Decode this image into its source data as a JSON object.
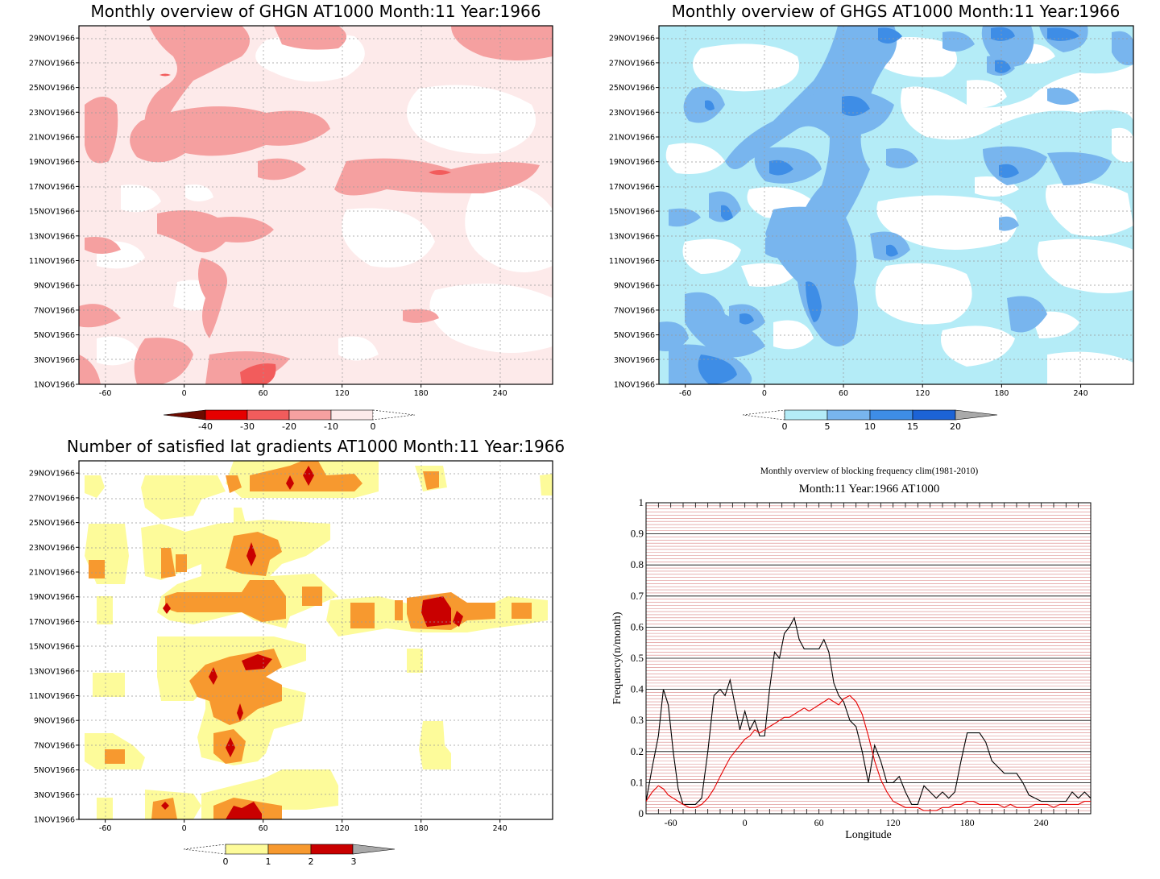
{
  "chart_data": [
    {
      "type": "heatmap",
      "title": "Monthly overview of GHGN AT1000 Month:11 Year:1966",
      "xlim": [
        -80,
        280
      ],
      "xticks": [
        "-60",
        "0",
        "60",
        "120",
        "180",
        "240"
      ],
      "xtick_values": [
        -60,
        0,
        60,
        120,
        180,
        240
      ],
      "yticks": [
        "1NOV1966",
        "3NOV1966",
        "5NOV1966",
        "7NOV1966",
        "9NOV1966",
        "11NOV1966",
        "13NOV1966",
        "15NOV1966",
        "17NOV1966",
        "19NOV1966",
        "21NOV1966",
        "23NOV1966",
        "25NOV1966",
        "27NOV1966",
        "29NOV1966"
      ],
      "grid": true,
      "colorbar": {
        "labels": [
          "-40",
          "-30",
          "-20",
          "-10",
          "0"
        ],
        "colors": [
          "#6b0a00",
          "#e60000",
          "#f25c5c",
          "#f5a0a0",
          "#fdeaea"
        ],
        "open_end_color": "#ffffff"
      },
      "field_levels": [
        "0 to -10 (background)",
        "-10 to -20",
        "-20 to -30",
        "-30 to -40"
      ]
    },
    {
      "type": "heatmap",
      "title": "Monthly overview of GHGS AT1000 Month:11 Year:1966",
      "xlim": [
        -80,
        280
      ],
      "xticks": [
        "-60",
        "0",
        "60",
        "120",
        "180",
        "240"
      ],
      "xtick_values": [
        -60,
        0,
        60,
        120,
        180,
        240
      ],
      "yticks": [
        "1NOV1966",
        "3NOV1966",
        "5NOV1966",
        "7NOV1966",
        "9NOV1966",
        "11NOV1966",
        "13NOV1966",
        "15NOV1966",
        "17NOV1966",
        "19NOV1966",
        "21NOV1966",
        "23NOV1966",
        "25NOV1966",
        "27NOV1966",
        "29NOV1966"
      ],
      "grid": true,
      "colorbar": {
        "labels": [
          "0",
          "5",
          "10",
          "15",
          "20"
        ],
        "colors": [
          "#b4ecf7",
          "#78b5ee",
          "#3e8de6",
          "#1c63d6",
          "#a9a9a9"
        ],
        "open_end_color": "#ffffff"
      }
    },
    {
      "type": "heatmap",
      "title": "Number of satisfied lat gradients AT1000 Month:11 Year:1966",
      "xlim": [
        -80,
        280
      ],
      "xticks": [
        "-60",
        "0",
        "60",
        "120",
        "180",
        "240"
      ],
      "xtick_values": [
        -60,
        0,
        60,
        120,
        180,
        240
      ],
      "yticks": [
        "1NOV1966",
        "3NOV1966",
        "5NOV1966",
        "7NOV1966",
        "9NOV1966",
        "11NOV1966",
        "13NOV1966",
        "15NOV1966",
        "17NOV1966",
        "19NOV1966",
        "21NOV1966",
        "23NOV1966",
        "25NOV1966",
        "27NOV1966",
        "29NOV1966"
      ],
      "grid": true,
      "colorbar": {
        "labels": [
          "0",
          "1",
          "2",
          "3"
        ],
        "colors": [
          "#fdfb9a",
          "#f7992f",
          "#c90000",
          "#a9a9a9"
        ],
        "open_end_color": "#ffffff"
      }
    },
    {
      "type": "line",
      "title": "Monthly overview of blocking frequency clim(1981-2010)",
      "subtitle": "Month:11 Year:1966  AT1000",
      "xlabel": "Longitude",
      "ylabel": "Frequency(n/month)",
      "xlim": [
        -80,
        280
      ],
      "ylim": [
        0,
        1
      ],
      "xticks": [
        "-60",
        "0",
        "60",
        "120",
        "180",
        "240"
      ],
      "xtick_values": [
        -60,
        0,
        60,
        120,
        180,
        240
      ],
      "yticks": [
        "0",
        "0.1",
        "0.2",
        "0.3",
        "0.4",
        "0.5",
        "0.6",
        "0.7",
        "0.8",
        "0.9",
        "1"
      ],
      "grid": true,
      "x": [
        -80,
        -75,
        -70,
        -66,
        -62,
        -58,
        -54,
        -50,
        -45,
        -40,
        -35,
        -30,
        -25,
        -20,
        -16,
        -12,
        -8,
        -4,
        0,
        4,
        8,
        12,
        16,
        20,
        24,
        28,
        32,
        36,
        40,
        44,
        48,
        52,
        56,
        60,
        64,
        68,
        72,
        76,
        80,
        85,
        90,
        95,
        100,
        105,
        110,
        115,
        120,
        125,
        130,
        135,
        140,
        145,
        150,
        155,
        160,
        165,
        170,
        175,
        180,
        185,
        190,
        195,
        200,
        205,
        210,
        215,
        220,
        225,
        230,
        235,
        240,
        245,
        250,
        255,
        260,
        265,
        270,
        275,
        280
      ],
      "series": [
        {
          "color": "#000000",
          "values": [
            0.04,
            0.15,
            0.25,
            0.4,
            0.35,
            0.2,
            0.08,
            0.03,
            0.03,
            0.03,
            0.05,
            0.2,
            0.38,
            0.4,
            0.38,
            0.43,
            0.35,
            0.27,
            0.33,
            0.27,
            0.3,
            0.25,
            0.25,
            0.4,
            0.52,
            0.5,
            0.58,
            0.6,
            0.63,
            0.56,
            0.53,
            0.53,
            0.53,
            0.53,
            0.56,
            0.52,
            0.42,
            0.38,
            0.36,
            0.3,
            0.28,
            0.2,
            0.1,
            0.22,
            0.17,
            0.1,
            0.1,
            0.12,
            0.07,
            0.03,
            0.03,
            0.09,
            0.07,
            0.05,
            0.07,
            0.05,
            0.07,
            0.17,
            0.26,
            0.26,
            0.26,
            0.23,
            0.17,
            0.15,
            0.13,
            0.13,
            0.13,
            0.1,
            0.06,
            0.05,
            0.04,
            0.04,
            0.04,
            0.04,
            0.04,
            0.07,
            0.05,
            0.07,
            0.05
          ]
        },
        {
          "color": "#e60000",
          "values": [
            0.04,
            0.07,
            0.09,
            0.08,
            0.06,
            0.05,
            0.04,
            0.03,
            0.02,
            0.02,
            0.03,
            0.05,
            0.08,
            0.12,
            0.15,
            0.18,
            0.2,
            0.22,
            0.24,
            0.25,
            0.27,
            0.26,
            0.27,
            0.28,
            0.29,
            0.3,
            0.31,
            0.31,
            0.32,
            0.33,
            0.34,
            0.33,
            0.34,
            0.35,
            0.36,
            0.37,
            0.36,
            0.35,
            0.37,
            0.38,
            0.36,
            0.32,
            0.25,
            0.17,
            0.11,
            0.07,
            0.04,
            0.03,
            0.02,
            0.02,
            0.02,
            0.01,
            0.01,
            0.01,
            0.02,
            0.02,
            0.03,
            0.03,
            0.04,
            0.04,
            0.03,
            0.03,
            0.03,
            0.03,
            0.02,
            0.03,
            0.02,
            0.02,
            0.02,
            0.03,
            0.03,
            0.03,
            0.02,
            0.03,
            0.03,
            0.03,
            0.03,
            0.04,
            0.04
          ]
        }
      ]
    }
  ]
}
